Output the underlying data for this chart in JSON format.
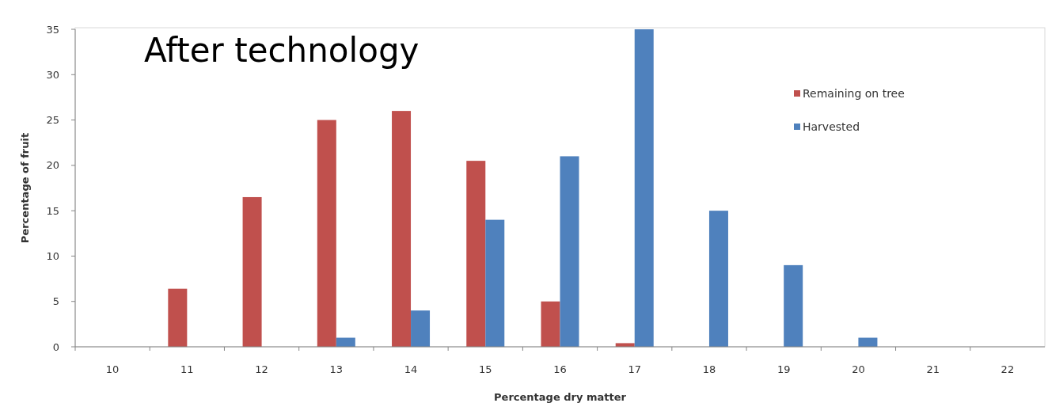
{
  "chart_data": {
    "type": "bar",
    "title": "After technology",
    "xlabel": "Percentage dry matter",
    "ylabel": "Percentage of fruit",
    "categories": [
      "10",
      "11",
      "12",
      "13",
      "14",
      "15",
      "16",
      "17",
      "18",
      "19",
      "20",
      "21",
      "22"
    ],
    "series": [
      {
        "name": "Remaining on tree",
        "color": "#c0504d",
        "values": [
          0,
          6.4,
          16.5,
          25,
          26,
          20.5,
          5,
          0.4,
          0,
          0,
          0,
          0,
          0
        ]
      },
      {
        "name": "Harvested",
        "color": "#4f81bd",
        "values": [
          0,
          0,
          0,
          1,
          4,
          14,
          21,
          35,
          15,
          9,
          1,
          0,
          0
        ]
      }
    ],
    "ylim": [
      0,
      35
    ],
    "yticks": [
      0,
      5,
      10,
      15,
      20,
      25,
      30,
      35
    ],
    "grid": false,
    "legend": "top right"
  }
}
